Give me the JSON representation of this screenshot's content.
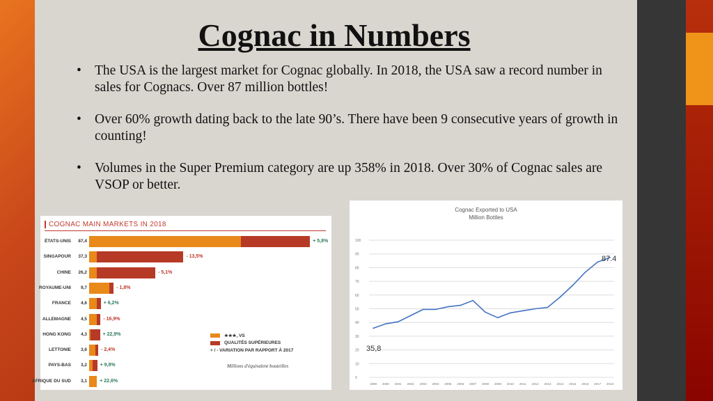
{
  "title": "Cognac in Numbers",
  "bullets": [
    "The USA is the largest market for Cognac globally. In 2018, the USA saw a record number in sales for Cognacs. Over 87 million bottles!",
    "Over 60% growth dating back to the late 90’s. There have been 9 consecutive years of growth in counting!",
    "Volumes in the Super Premium category are up 358% in 2018. Over 30% of Cognac sales are VSOP or better."
  ],
  "colors": {
    "orange": "#e8891a",
    "red": "#b73a26",
    "green": "#2e7d5b",
    "line": "#4472c4"
  },
  "chart_data": [
    {
      "type": "bar",
      "title": "COGNAC MAIN MARKETS IN 2018",
      "categories": [
        "ÉTATS-UNIS",
        "SINGAPOUR",
        "CHINE",
        "ROYAUME-UNI",
        "FRANCE",
        "ALLEMAGNE",
        "HONG KONG",
        "LETTONIE",
        "PAYS-BAS",
        "AFRIQUE DU SUD"
      ],
      "totals_label": [
        "87,4",
        "37,3",
        "26,2",
        "9,7",
        "4,6",
        "4,5",
        "4,3",
        "3,6",
        "3,2",
        "3,1"
      ],
      "series": [
        {
          "name": "★★★, VS",
          "values": [
            60,
            3,
            3,
            8,
            3,
            3,
            0.5,
            2.5,
            1.5,
            3.1
          ]
        },
        {
          "name": "QUALITÉS SUPÉRIEURES",
          "values": [
            27.4,
            34.3,
            23.2,
            1.7,
            1.6,
            1.5,
            3.8,
            1.1,
            1.7,
            0
          ]
        }
      ],
      "variation": [
        "+ 5,8%",
        "- 13,5%",
        "- 5,1%",
        "- 1,8%",
        "+ 6,2%",
        "- 16,9%",
        "+ 22,9%",
        "- 2,4%",
        "+ 9,8%",
        "+ 22,6%"
      ],
      "variation_label": "+ / -  VARIATION PAR RAPPORT À 2017",
      "note": "Millions d'équivalent bouteilles"
    },
    {
      "type": "line",
      "title": "Cognac Exported to USA",
      "subtitle": "Million Bottles",
      "x": [
        "1999",
        "2000",
        "2001",
        "2002",
        "2003",
        "2004",
        "2005",
        "2006",
        "2007",
        "2008",
        "2009",
        "2010",
        "2011",
        "2012",
        "2013",
        "2014",
        "2015",
        "2016",
        "2017",
        "2018"
      ],
      "values": [
        35.8,
        39,
        40.5,
        45,
        49.5,
        49.5,
        51.5,
        52.5,
        56,
        47.5,
        43.5,
        47,
        48.5,
        50,
        51,
        58.5,
        67,
        76.5,
        84,
        87.4
      ],
      "ylim": [
        0,
        100
      ],
      "yticks": [
        0,
        10,
        20,
        30,
        40,
        50,
        60,
        70,
        80,
        90,
        100
      ],
      "annotations": [
        "35,8",
        "87.4"
      ],
      "grid": true
    }
  ]
}
